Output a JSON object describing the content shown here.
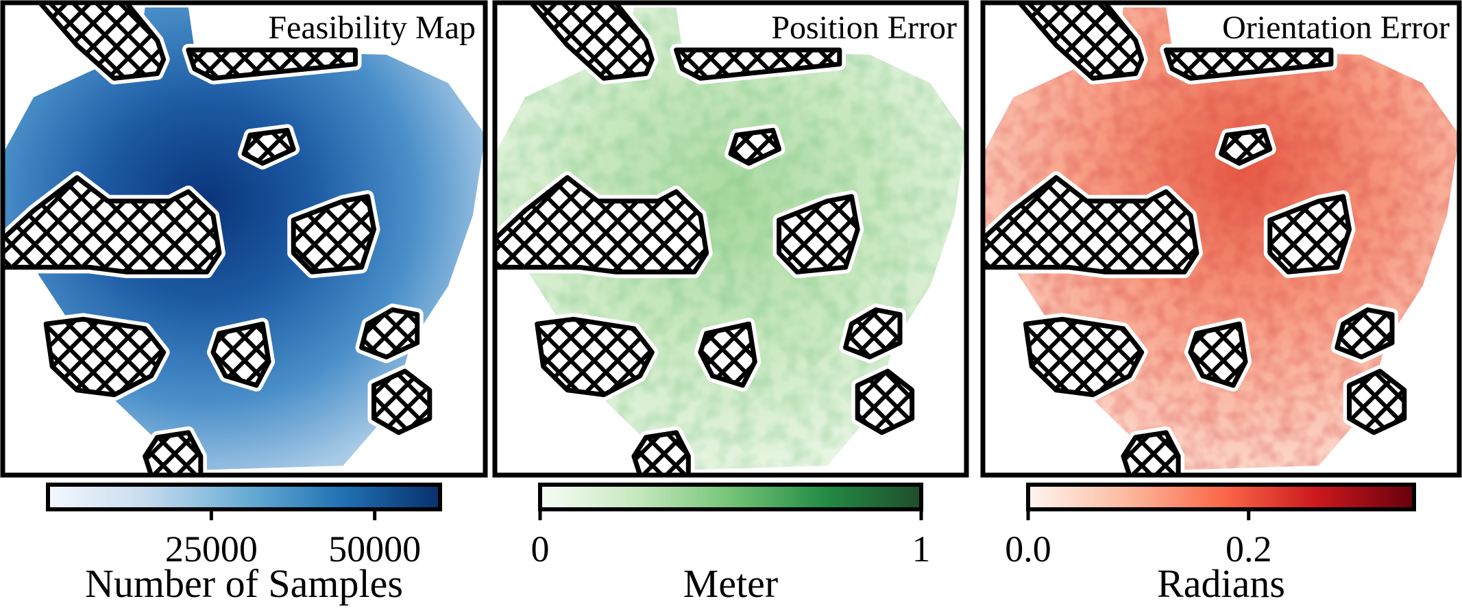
{
  "chart_data": [
    {
      "type": "heatmap",
      "title": "Feasibility Map",
      "colormap": "Blues",
      "colorbar": {
        "label": "Number of Samples",
        "range": [
          0,
          60000
        ],
        "ticks": [
          25000,
          50000
        ],
        "tick_labels": [
          "25000",
          "50000"
        ],
        "colors": [
          "#f4f8fd",
          "#c6dbef",
          "#6baed6",
          "#2171b5",
          "#08306b"
        ]
      }
    },
    {
      "type": "heatmap",
      "title": "Position Error",
      "colormap": "Greens",
      "colorbar": {
        "label": "Meter",
        "range": [
          0,
          1
        ],
        "ticks": [
          0,
          1
        ],
        "tick_labels": [
          "0",
          "1"
        ],
        "colors": [
          "#f7fcf5",
          "#c7e9c0",
          "#74c476",
          "#238b45",
          "#1f4d2b"
        ]
      }
    },
    {
      "type": "heatmap",
      "title": "Orientation Error",
      "colormap": "Reds",
      "colorbar": {
        "label": "Radians",
        "range": [
          0,
          0.35
        ],
        "ticks": [
          0,
          0.2
        ],
        "tick_labels": [
          "0.0",
          "0.2"
        ],
        "colors": [
          "#fff5f0",
          "#fcbba1",
          "#fb6a4a",
          "#cb181d",
          "#67000d"
        ]
      }
    }
  ]
}
